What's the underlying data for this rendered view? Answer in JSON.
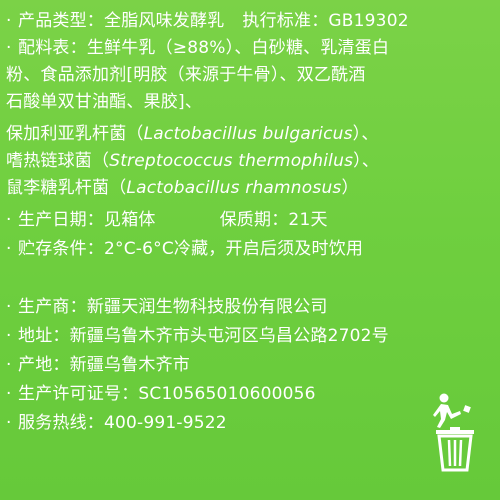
{
  "info": {
    "product_type_label": "产品类型：",
    "product_type_value": "全脂风味发酵乳",
    "standard_label": "执行标准：",
    "standard_value": "GB19302",
    "ingredients_label": "配料表：",
    "ingredients_line1": "生鲜牛乳（≥88%）、白砂糖、乳清蛋白",
    "ingredients_line2": "粉、食品添加剂[明胶（来源于牛骨）、双乙酰酒",
    "ingredients_line3": "石酸单双甘油酯、果胶]、",
    "culture1_prefix": "保加利亚乳杆菌（",
    "culture1_latin": "Lactobacillus bulgaricus",
    "culture1_suffix": "）、",
    "culture2_prefix": "嗜热链球菌（",
    "culture2_latin": "Streptococcus thermophilus",
    "culture2_suffix": "）、",
    "culture3_prefix": "鼠李糖乳杆菌（",
    "culture3_latin": "Lactobacillus rhamnosus",
    "culture3_suffix": "）",
    "production_date_label": "生产日期：",
    "production_date_value": "见箱体",
    "shelf_life_label": "保质期：",
    "shelf_life_value": "21天",
    "storage_label": "贮存条件：",
    "storage_value": "2°C-6°C冷藏，开启后须及时饮用",
    "manufacturer_label": "生产商：",
    "manufacturer_value": "新疆天润生物科技股份有限公司",
    "address_label": "地址：",
    "address_value": "新疆乌鲁木齐市头屯河区乌昌公路2702号",
    "origin_label": "产地：",
    "origin_value": "新疆乌鲁木齐市",
    "license_label": "生产许可证号：",
    "license_value": "SC10565010600056",
    "hotline_label": "服务热线：",
    "hotline_value": "400-991-9522"
  },
  "bullet_char": "·",
  "icons": {
    "recycle": "trash-bin-icon"
  },
  "colors": {
    "background": "#6fcf3f",
    "text": "#ffffff"
  }
}
